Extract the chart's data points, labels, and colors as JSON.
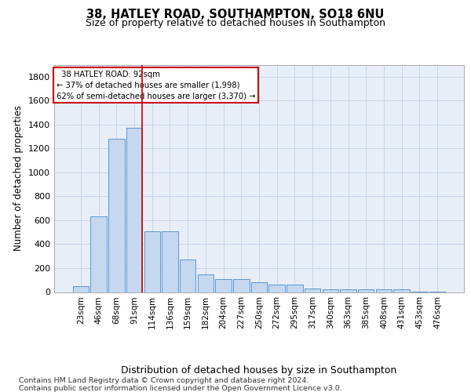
{
  "title1": "38, HATLEY ROAD, SOUTHAMPTON, SO18 6NU",
  "title2": "Size of property relative to detached houses in Southampton",
  "xlabel": "Distribution of detached houses by size in Southampton",
  "ylabel": "Number of detached properties",
  "categories": [
    "23sqm",
    "46sqm",
    "68sqm",
    "91sqm",
    "114sqm",
    "136sqm",
    "159sqm",
    "182sqm",
    "204sqm",
    "227sqm",
    "250sqm",
    "272sqm",
    "295sqm",
    "317sqm",
    "340sqm",
    "363sqm",
    "385sqm",
    "408sqm",
    "431sqm",
    "453sqm",
    "476sqm"
  ],
  "values": [
    50,
    630,
    1280,
    1370,
    510,
    510,
    270,
    150,
    110,
    110,
    85,
    60,
    60,
    30,
    25,
    25,
    20,
    20,
    20,
    5,
    5
  ],
  "bar_color": "#c5d8f0",
  "bar_edge_color": "#5a96d0",
  "grid_color": "#c8d4e8",
  "background_color": "#e8eef8",
  "red_line_color": "#cc0000",
  "red_line_x": 3.43,
  "annotation_line1": "  38 HATLEY ROAD: 92sqm",
  "annotation_line2": "← 37% of detached houses are smaller (1,998)",
  "annotation_line3": "62% of semi-detached houses are larger (3,370) →",
  "annotation_box_color": "#cc0000",
  "annotation_box_bg": "#ffffff",
  "footnote1": "Contains HM Land Registry data © Crown copyright and database right 2024.",
  "footnote2": "Contains public sector information licensed under the Open Government Licence v3.0.",
  "ylim": [
    0,
    1900
  ],
  "yticks": [
    0,
    200,
    400,
    600,
    800,
    1000,
    1200,
    1400,
    1600,
    1800
  ]
}
